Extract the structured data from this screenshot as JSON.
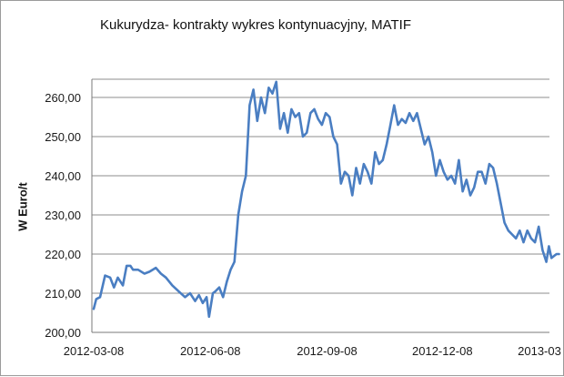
{
  "chart_data": {
    "type": "line",
    "title": "Kukurydza- kontrakty wykres kontynuacyjny, MATIF",
    "xlabel": "",
    "ylabel": "W Euro/t",
    "x_ticks": [
      "2012-03-08",
      "2012-06-08",
      "2012-09-08",
      "2012-12-08",
      "2013-03"
    ],
    "y_ticks": [
      "200,00",
      "210,00",
      "220,00",
      "230,00",
      "240,00",
      "250,00",
      "260,00"
    ],
    "ylim": [
      200,
      264
    ],
    "grid": "horizontal",
    "legend": "none",
    "line_color": "#4a7ec2",
    "series": [
      {
        "x": [
          "2012-03-08",
          "2012-03-10",
          "2012-03-13",
          "2012-03-17",
          "2012-03-21",
          "2012-03-24",
          "2012-03-27",
          "2012-03-31",
          "2012-04-03",
          "2012-04-06",
          "2012-04-08",
          "2012-04-12",
          "2012-04-17",
          "2012-04-21",
          "2012-04-26",
          "2012-04-30",
          "2012-05-04",
          "2012-05-09",
          "2012-05-14",
          "2012-05-19",
          "2012-05-23",
          "2012-05-27",
          "2012-05-30",
          "2012-06-02",
          "2012-06-05",
          "2012-06-07",
          "2012-06-10",
          "2012-06-12",
          "2012-06-15",
          "2012-06-18",
          "2012-06-21",
          "2012-06-24",
          "2012-06-27",
          "2012-06-30",
          "2012-07-03",
          "2012-07-06",
          "2012-07-09",
          "2012-07-12",
          "2012-07-15",
          "2012-07-18",
          "2012-07-21",
          "2012-07-24",
          "2012-07-27",
          "2012-07-30",
          "2012-08-02",
          "2012-08-05",
          "2012-08-08",
          "2012-08-11",
          "2012-08-14",
          "2012-08-17",
          "2012-08-20",
          "2012-08-23",
          "2012-08-26",
          "2012-08-29",
          "2012-09-01",
          "2012-09-04",
          "2012-09-07",
          "2012-09-10",
          "2012-09-13",
          "2012-09-16",
          "2012-09-19",
          "2012-09-22",
          "2012-09-25",
          "2012-09-28",
          "2012-10-01",
          "2012-10-04",
          "2012-10-07",
          "2012-10-10",
          "2012-10-13",
          "2012-10-16",
          "2012-10-19",
          "2012-10-22",
          "2012-10-25",
          "2012-10-28",
          "2012-10-31",
          "2012-11-03",
          "2012-11-06",
          "2012-11-09",
          "2012-11-12",
          "2012-11-15",
          "2012-11-18",
          "2012-11-21",
          "2012-11-24",
          "2012-11-27",
          "2012-11-30",
          "2012-12-03",
          "2012-12-06",
          "2012-12-09",
          "2012-12-12",
          "2012-12-15",
          "2012-12-18",
          "2012-12-21",
          "2012-12-24",
          "2012-12-27",
          "2012-12-30",
          "2013-01-02",
          "2013-01-05",
          "2013-01-08",
          "2013-01-11",
          "2013-01-14",
          "2013-01-17",
          "2013-01-20",
          "2013-01-23",
          "2013-01-26",
          "2013-01-29",
          "2013-02-01",
          "2013-02-04",
          "2013-02-07",
          "2013-02-10",
          "2013-02-13",
          "2013-02-16",
          "2013-02-19",
          "2013-02-22",
          "2013-02-25",
          "2013-02-28",
          "2013-03-02",
          "2013-03-04",
          "2013-03-06",
          "2013-03-08",
          "2013-03-10"
        ],
        "values": [
          206,
          208.5,
          209,
          214.5,
          214,
          211.5,
          214,
          212,
          217,
          217,
          216,
          216,
          215,
          215.5,
          216.5,
          215,
          214,
          212,
          210.5,
          209,
          210,
          208,
          209.5,
          207.5,
          209,
          204,
          210,
          210.5,
          211.5,
          209,
          213,
          216,
          218,
          230,
          236,
          240,
          258,
          262,
          254,
          260,
          256,
          262.5,
          261,
          264,
          252,
          256,
          251,
          257,
          255,
          256,
          250,
          251,
          256,
          257,
          254.5,
          253,
          256,
          255,
          250,
          248,
          238,
          241,
          240,
          235,
          242,
          238,
          243,
          241,
          238,
          246,
          243,
          244,
          248,
          253,
          258,
          253,
          254.5,
          253.5,
          256,
          254,
          256,
          252,
          248,
          250,
          246,
          240,
          244,
          241,
          239,
          240,
          238,
          244,
          236,
          239,
          235,
          237,
          241,
          241,
          238,
          243,
          242,
          238,
          233,
          228,
          226,
          225,
          224,
          226,
          223,
          226,
          224,
          223,
          227,
          221,
          218,
          222,
          219,
          219.5,
          220,
          220
        ]
      }
    ]
  }
}
